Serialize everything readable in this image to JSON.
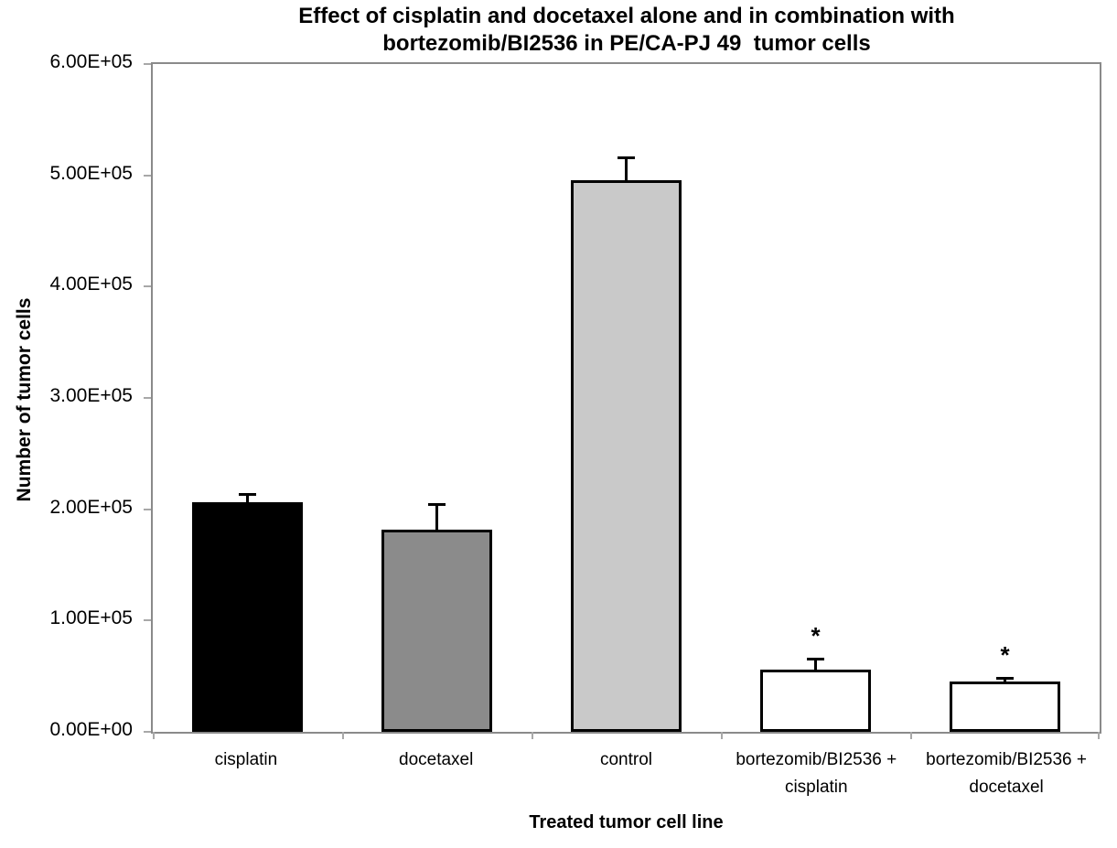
{
  "chart_data": {
    "type": "bar",
    "title": "Effect of cisplatin and docetaxel alone and in combination with bortezomib/BI2536 in PE/CA-PJ 49 tumor cells",
    "title_lines": [
      "Effect of cisplatin and docetaxel alone and in combination with",
      "bortezomib/BI2536 in PE/CA-PJ 49  tumor cells"
    ],
    "xlabel": "Treated tumor cell line",
    "ylabel": "Number of tumor cells",
    "categories": [
      "cisplatin",
      "docetaxel",
      "control",
      "bortezomib/BI2536 + cisplatin",
      "bortezomib/BI2536 + docetaxel"
    ],
    "values": [
      206000,
      182000,
      496000,
      56000,
      45000
    ],
    "error_bars": [
      7000,
      22000,
      19000,
      9000,
      2500
    ],
    "significance_markers": [
      "",
      "",
      "",
      "*",
      "*"
    ],
    "bar_fill_colors": [
      "#000000",
      "#8b8b8b",
      "#c9c9c9",
      "#ffffff",
      "#ffffff"
    ],
    "bar_border_color": "#000000",
    "axis_color": "#8a8a8a",
    "ylim": [
      0,
      600000
    ],
    "ytick_values": [
      0,
      100000,
      200000,
      300000,
      400000,
      500000,
      600000
    ],
    "ytick_labels": [
      "0.00E+00",
      "1.00E+05",
      "2.00E+05",
      "3.00E+05",
      "4.00E+05",
      "5.00E+05",
      "6.00E+05"
    ],
    "grid": false,
    "legend": "none"
  }
}
